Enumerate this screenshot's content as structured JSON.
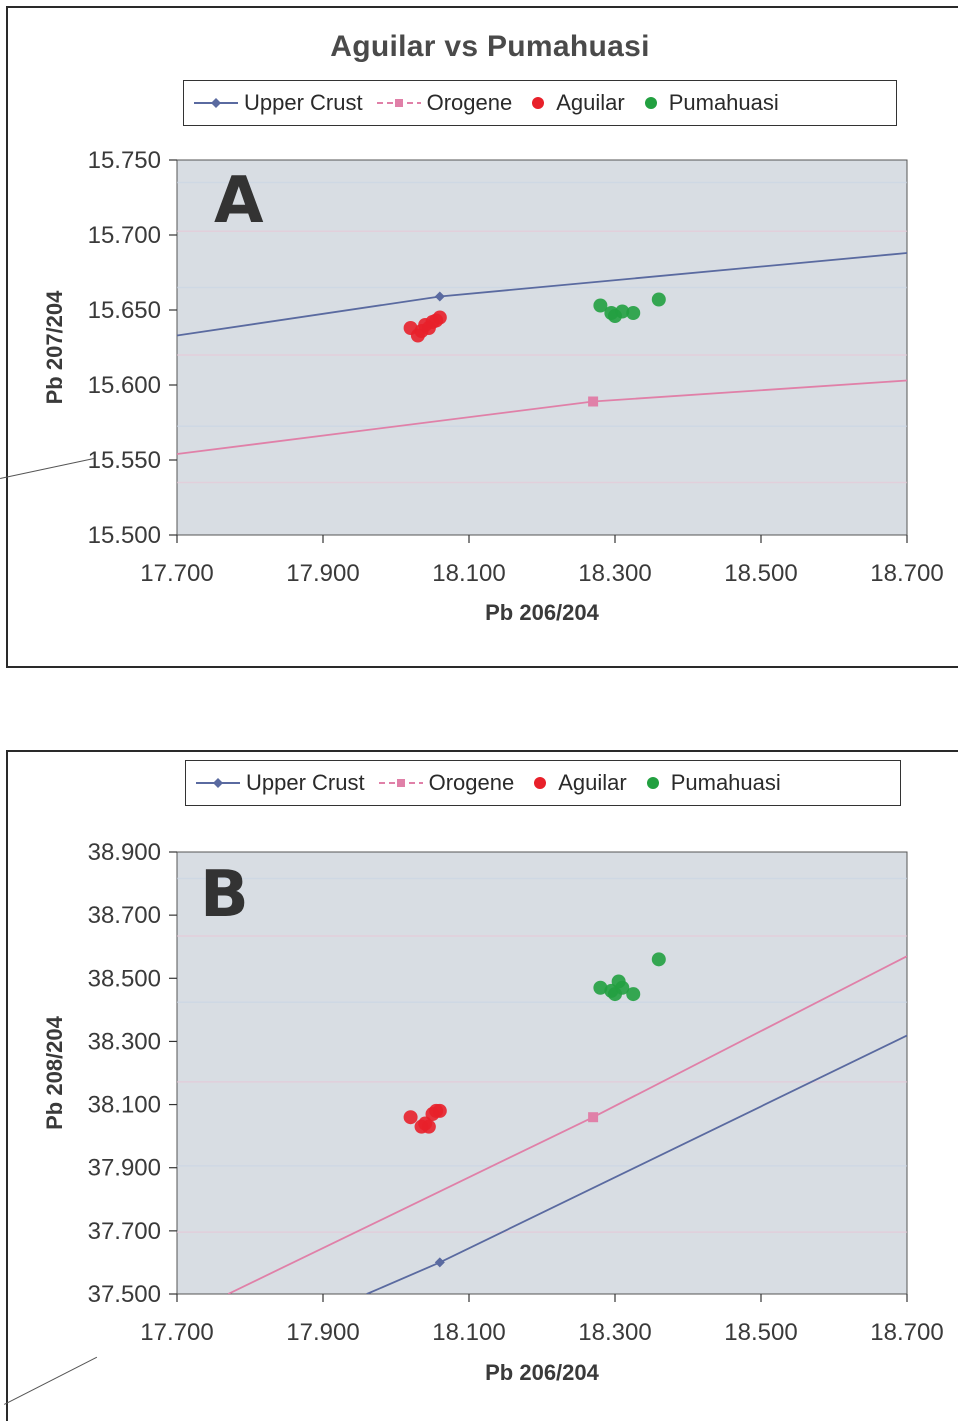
{
  "chart_data": [
    {
      "type": "scatter",
      "panel_label": "A",
      "title": "Aguilar vs Pumahuasi",
      "xlabel": "Pb 206/204",
      "ylabel": "Pb 207/204",
      "xlim": [
        17.7,
        18.7
      ],
      "ylim": [
        15.5,
        15.75
      ],
      "x_ticks": [
        "17.700",
        "17.900",
        "18.100",
        "18.300",
        "18.500",
        "18.700"
      ],
      "y_ticks": [
        "15.500",
        "15.550",
        "15.600",
        "15.650",
        "15.700",
        "15.750"
      ],
      "legend": [
        "Upper Crust",
        "Orogene",
        "Aguilar",
        "Pumahuasi"
      ],
      "legend_position": "top",
      "series": [
        {
          "name": "Upper Crust",
          "kind": "line",
          "color": "#5a6aa0",
          "x": [
            17.7,
            18.06,
            18.7
          ],
          "y": [
            15.633,
            15.659,
            15.688
          ],
          "marker_x": 18.06,
          "marker_y": 15.659
        },
        {
          "name": "Orogene",
          "kind": "line",
          "color": "#e080a8",
          "x": [
            17.7,
            18.27,
            18.7
          ],
          "y": [
            15.554,
            15.589,
            15.603
          ],
          "marker_x": 18.27,
          "marker_y": 15.589
        },
        {
          "name": "Aguilar",
          "kind": "points",
          "color": "#e8202a",
          "x": [
            18.02,
            18.03,
            18.035,
            18.04,
            18.045,
            18.05,
            18.055,
            18.06
          ],
          "y": [
            15.638,
            15.633,
            15.636,
            15.64,
            15.638,
            15.642,
            15.643,
            15.645
          ]
        },
        {
          "name": "Pumahuasi",
          "kind": "points",
          "color": "#22a040",
          "x": [
            18.28,
            18.295,
            18.3,
            18.31,
            18.325,
            18.36
          ],
          "y": [
            15.653,
            15.648,
            15.646,
            15.649,
            15.648,
            15.657
          ]
        }
      ]
    },
    {
      "type": "scatter",
      "panel_label": "B",
      "xlabel": "Pb 206/204",
      "ylabel": "Pb 208/204",
      "xlim": [
        17.7,
        18.7
      ],
      "ylim": [
        37.5,
        38.9
      ],
      "x_ticks": [
        "17.700",
        "17.900",
        "18.100",
        "18.300",
        "18.500",
        "18.700"
      ],
      "y_ticks": [
        "37.500",
        "37.700",
        "37.900",
        "38.100",
        "38.300",
        "38.500",
        "38.700",
        "38.900"
      ],
      "legend": [
        "Upper Crust",
        "Orogene",
        "Aguilar",
        "Pumahuasi"
      ],
      "legend_position": "top",
      "series": [
        {
          "name": "Upper Crust",
          "kind": "line",
          "color": "#5a6aa0",
          "x": [
            17.96,
            18.06,
            18.71
          ],
          "y": [
            37.5,
            37.6,
            38.33
          ],
          "marker_x": 18.06,
          "marker_y": 37.6
        },
        {
          "name": "Orogene",
          "kind": "line",
          "color": "#e080a8",
          "x": [
            17.77,
            18.27,
            18.7
          ],
          "y": [
            37.5,
            38.06,
            38.57
          ],
          "marker_x": 18.27,
          "marker_y": 38.06
        },
        {
          "name": "Aguilar",
          "kind": "points",
          "color": "#e8202a",
          "x": [
            18.02,
            18.035,
            18.04,
            18.045,
            18.05,
            18.055,
            18.06
          ],
          "y": [
            38.06,
            38.03,
            38.04,
            38.03,
            38.07,
            38.08,
            38.08
          ]
        },
        {
          "name": "Pumahuasi",
          "kind": "points",
          "color": "#22a040",
          "x": [
            18.28,
            18.295,
            18.3,
            18.305,
            18.31,
            18.325,
            18.36
          ],
          "y": [
            38.47,
            38.46,
            38.45,
            38.49,
            38.47,
            38.45,
            38.56
          ]
        }
      ]
    }
  ]
}
